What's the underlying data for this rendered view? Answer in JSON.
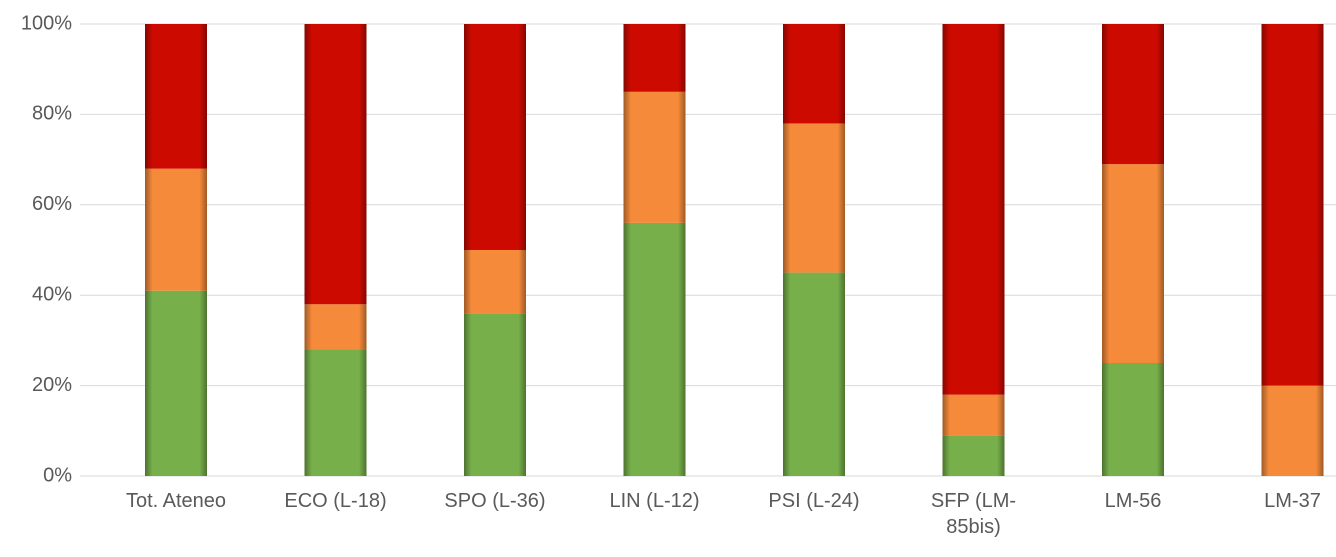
{
  "chart_data": {
    "type": "stacked_bar",
    "categories": [
      "Tot. Ateneo",
      "ECO (L-18)",
      "SPO (L-36)",
      "LIN (L-12)",
      "PSI (L-24)",
      "SFP (LM-85bis)",
      "LM-56",
      "LM-37"
    ],
    "series": [
      {
        "color": "#77b04a",
        "values": [
          41,
          28,
          36,
          56,
          45,
          9,
          25,
          0
        ]
      },
      {
        "color": "#f58a3a",
        "values": [
          27,
          10,
          14,
          29,
          33,
          9,
          44,
          20
        ]
      },
      {
        "color": "#cc0a00",
        "values": [
          32,
          62,
          50,
          15,
          22,
          82,
          31,
          80
        ]
      }
    ],
    "ylim": [
      0,
      100
    ],
    "yticks": [
      {
        "value": 0,
        "label": "0%"
      },
      {
        "value": 20,
        "label": "20%"
      },
      {
        "value": 40,
        "label": "40%"
      },
      {
        "value": 60,
        "label": "60%"
      },
      {
        "value": 80,
        "label": "80%"
      },
      {
        "value": 100,
        "label": "100%"
      }
    ],
    "grid": true
  }
}
